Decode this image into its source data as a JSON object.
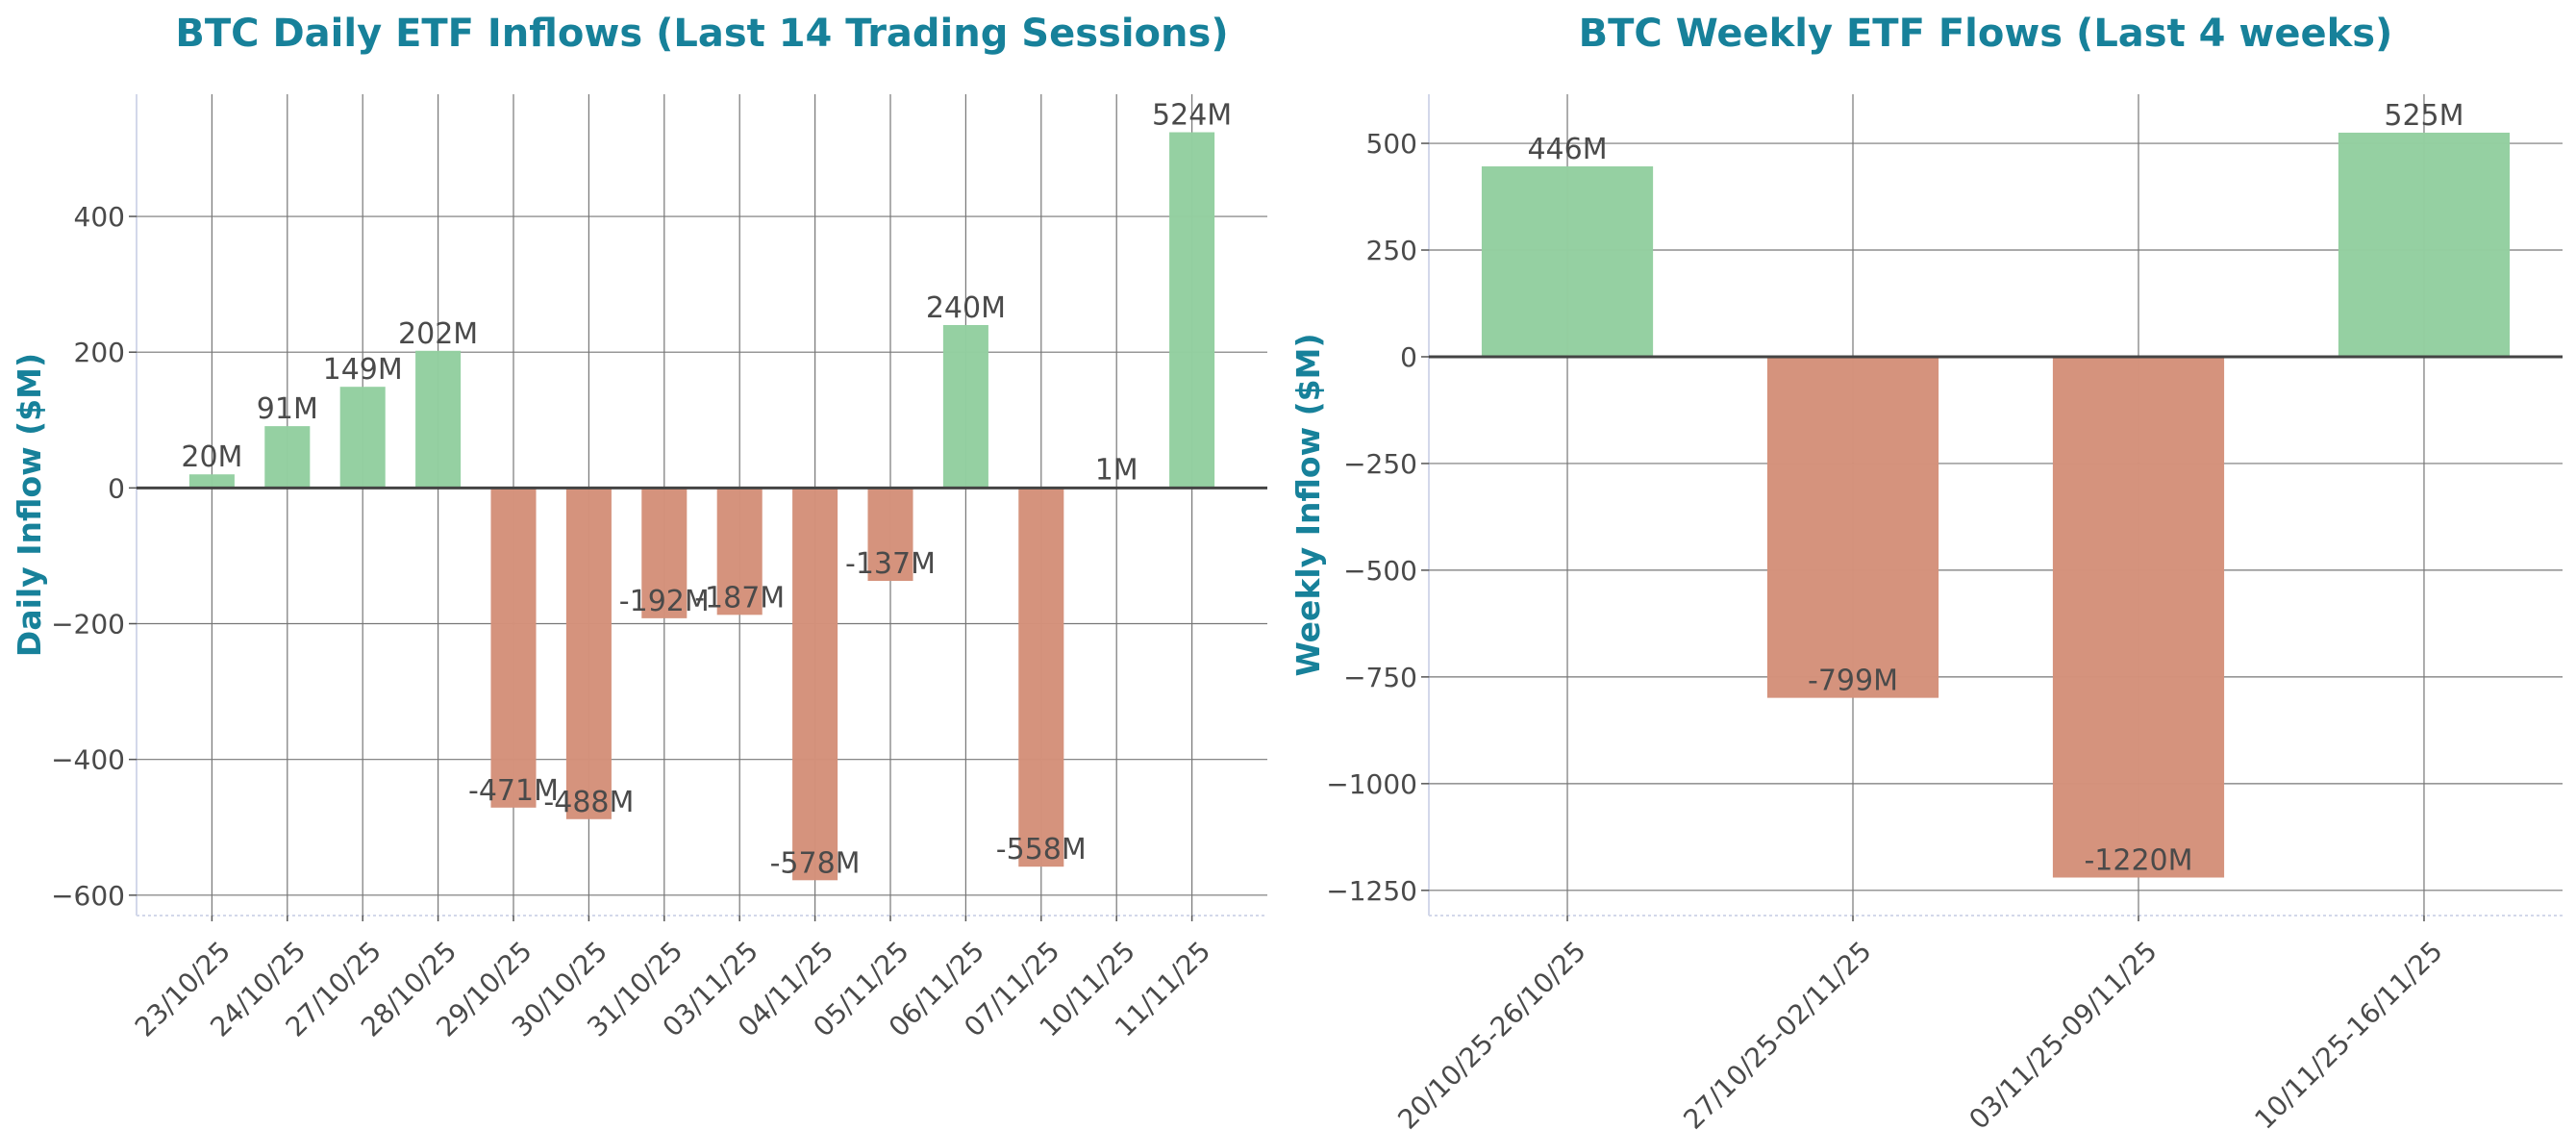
{
  "chart_data": [
    {
      "type": "bar",
      "title": "BTC Daily ETF Inflows (Last 14 Trading Sessions)",
      "xlabel": "",
      "ylabel": "Daily Inflow ($M)",
      "categories": [
        "23/10/25",
        "24/10/25",
        "27/10/25",
        "28/10/25",
        "29/10/25",
        "30/10/25",
        "31/10/25",
        "03/11/25",
        "04/11/25",
        "05/11/25",
        "06/11/25",
        "07/11/25",
        "10/11/25",
        "11/11/25"
      ],
      "values": [
        20,
        91,
        149,
        202,
        -471,
        -488,
        -192,
        -187,
        -578,
        -137,
        240,
        -558,
        1,
        524
      ],
      "data_labels": [
        "20M",
        "91M",
        "149M",
        "202M",
        "-471M",
        "-488M",
        "-192M",
        "-187M",
        "-578M",
        "-137M",
        "240M",
        "-558M",
        "1M",
        "524M"
      ],
      "ylim": [
        -630,
        580
      ],
      "yticks": [
        -600,
        -400,
        -200,
        0,
        200,
        400
      ],
      "ytick_labels": [
        "−600",
        "−400",
        "−200",
        "0",
        "200",
        "400"
      ],
      "grid": true,
      "colors": {
        "positive": "#93cfa0",
        "negative": "#d4917a",
        "title": "#17819a"
      }
    },
    {
      "type": "bar",
      "title": "BTC Weekly ETF Flows (Last 4 weeks)",
      "xlabel": "",
      "ylabel": "Weekly Inflow ($M)",
      "categories": [
        "20/10/25-26/10/25",
        "27/10/25-02/11/25",
        "03/11/25-09/11/25",
        "10/11/25-16/11/25"
      ],
      "values": [
        446,
        -799,
        -1220,
        525
      ],
      "data_labels": [
        "446M",
        "-799M",
        "-1220M",
        "525M"
      ],
      "ylim": [
        -1309,
        615
      ],
      "yticks": [
        -1250,
        -1000,
        -750,
        -500,
        -250,
        0,
        250,
        500
      ],
      "ytick_labels": [
        "−1250",
        "−1000",
        "−750",
        "−500",
        "−250",
        "0",
        "250",
        "500"
      ],
      "grid": true,
      "colors": {
        "positive": "#93cfa0",
        "negative": "#d4917a",
        "title": "#17819a"
      }
    }
  ]
}
